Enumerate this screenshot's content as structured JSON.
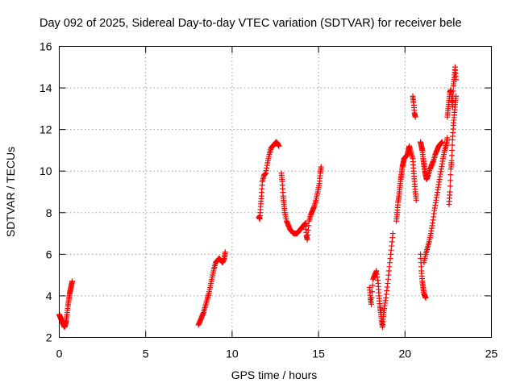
{
  "chart_data": {
    "type": "scatter",
    "title": "Day 092 of 2025, Sidereal Day-to-day VTEC variation (SDTVAR) for receiver bele",
    "xlabel": "GPS time / hours",
    "ylabel": "SDTVAR / TECUs",
    "xlim": [
      0,
      25
    ],
    "ylim": [
      2,
      16
    ],
    "xticks": [
      0,
      5,
      10,
      15,
      20,
      25
    ],
    "yticks": [
      2,
      4,
      6,
      8,
      10,
      12,
      14,
      16
    ],
    "grid": true,
    "marker": "+",
    "color": "#ff0000",
    "segments": [
      [
        [
          0.0,
          3.1
        ],
        [
          0.05,
          3.0
        ],
        [
          0.1,
          2.9
        ],
        [
          0.15,
          2.8
        ],
        [
          0.2,
          2.7
        ],
        [
          0.25,
          2.6
        ],
        [
          0.3,
          2.5
        ],
        [
          0.35,
          2.6
        ],
        [
          0.4,
          2.8
        ],
        [
          0.45,
          3.1
        ],
        [
          0.5,
          3.5
        ],
        [
          0.55,
          3.8
        ],
        [
          0.6,
          4.1
        ],
        [
          0.65,
          4.3
        ],
        [
          0.7,
          4.5
        ],
        [
          0.75,
          4.7
        ]
      ],
      [
        [
          8.05,
          2.6
        ],
        [
          8.15,
          2.8
        ],
        [
          8.25,
          3.0
        ],
        [
          8.35,
          3.2
        ],
        [
          8.45,
          3.5
        ],
        [
          8.55,
          3.8
        ],
        [
          8.65,
          4.1
        ],
        [
          8.75,
          4.5
        ],
        [
          8.85,
          4.9
        ],
        [
          8.95,
          5.3
        ],
        [
          9.05,
          5.6
        ],
        [
          9.15,
          5.7
        ],
        [
          9.25,
          5.8
        ],
        [
          9.35,
          5.7
        ],
        [
          9.45,
          5.6
        ],
        [
          9.55,
          5.8
        ],
        [
          9.6,
          6.1
        ]
      ],
      [
        [
          11.55,
          7.8
        ],
        [
          11.6,
          7.7
        ],
        [
          11.65,
          8.3
        ],
        [
          11.7,
          8.8
        ],
        [
          11.75,
          9.5
        ],
        [
          11.85,
          9.8
        ],
        [
          11.95,
          9.9
        ],
        [
          12.05,
          10.4
        ],
        [
          12.15,
          10.8
        ],
        [
          12.25,
          11.1
        ],
        [
          12.35,
          11.2
        ],
        [
          12.45,
          11.3
        ],
        [
          12.55,
          11.4
        ],
        [
          12.65,
          11.3
        ],
        [
          12.7,
          11.2
        ]
      ],
      [
        [
          12.85,
          9.9
        ],
        [
          12.9,
          9.5
        ],
        [
          12.95,
          8.8
        ],
        [
          13.0,
          8.4
        ],
        [
          13.05,
          8.0
        ],
        [
          13.15,
          7.6
        ],
        [
          13.25,
          7.4
        ],
        [
          13.35,
          7.2
        ],
        [
          13.45,
          7.1
        ],
        [
          13.55,
          7.0
        ],
        [
          13.65,
          7.0
        ],
        [
          13.75,
          7.0
        ],
        [
          13.85,
          7.1
        ],
        [
          13.95,
          7.2
        ],
        [
          14.05,
          7.3
        ],
        [
          14.15,
          7.4
        ],
        [
          14.25,
          7.5
        ],
        [
          14.3,
          6.9
        ],
        [
          14.35,
          6.7
        ],
        [
          14.45,
          7.6
        ],
        [
          14.55,
          7.9
        ],
        [
          14.65,
          8.1
        ],
        [
          14.75,
          8.3
        ],
        [
          14.85,
          8.6
        ],
        [
          14.95,
          9.0
        ],
        [
          15.05,
          9.4
        ],
        [
          15.1,
          9.9
        ],
        [
          15.15,
          10.2
        ]
      ],
      [
        [
          17.95,
          4.4
        ],
        [
          18.0,
          3.9
        ],
        [
          18.05,
          3.6
        ],
        [
          18.15,
          4.8
        ],
        [
          18.25,
          5.0
        ],
        [
          18.35,
          5.2
        ],
        [
          18.45,
          4.6
        ],
        [
          18.5,
          4.0
        ],
        [
          18.55,
          3.5
        ],
        [
          18.6,
          3.2
        ],
        [
          18.65,
          2.8
        ],
        [
          18.7,
          2.5
        ],
        [
          18.75,
          3.0
        ],
        [
          18.8,
          3.4
        ],
        [
          18.9,
          3.9
        ],
        [
          19.0,
          4.6
        ],
        [
          19.1,
          5.4
        ],
        [
          19.2,
          6.2
        ],
        [
          19.3,
          7.0
        ]
      ],
      [
        [
          19.5,
          7.6
        ],
        [
          19.55,
          8.0
        ],
        [
          19.6,
          8.5
        ],
        [
          19.65,
          8.8
        ],
        [
          19.7,
          9.2
        ],
        [
          19.75,
          9.6
        ],
        [
          19.8,
          9.9
        ],
        [
          19.85,
          10.2
        ],
        [
          19.9,
          10.4
        ],
        [
          19.95,
          10.6
        ],
        [
          20.05,
          10.7
        ],
        [
          20.15,
          10.8
        ],
        [
          20.2,
          11.0
        ],
        [
          20.25,
          11.2
        ],
        [
          20.35,
          10.9
        ],
        [
          20.45,
          10.6
        ],
        [
          20.5,
          10.0
        ],
        [
          20.55,
          9.5
        ],
        [
          20.6,
          9.0
        ],
        [
          20.65,
          8.6
        ]
      ],
      [
        [
          20.45,
          13.6
        ],
        [
          20.5,
          13.3
        ],
        [
          20.55,
          12.8
        ],
        [
          20.6,
          12.6
        ]
      ],
      [
        [
          20.9,
          6.0
        ],
        [
          20.95,
          5.2
        ],
        [
          21.0,
          4.7
        ],
        [
          21.05,
          4.4
        ],
        [
          21.1,
          4.1
        ],
        [
          21.15,
          4.0
        ],
        [
          21.2,
          3.9
        ]
      ],
      [
        [
          20.9,
          11.4
        ],
        [
          20.95,
          11.2
        ],
        [
          21.0,
          11.0
        ],
        [
          21.05,
          10.6
        ],
        [
          21.1,
          10.3
        ],
        [
          21.15,
          10.0
        ],
        [
          21.2,
          9.8
        ],
        [
          21.25,
          9.6
        ],
        [
          21.35,
          9.8
        ],
        [
          21.45,
          10.1
        ],
        [
          21.55,
          10.3
        ],
        [
          21.65,
          10.5
        ],
        [
          21.75,
          10.8
        ],
        [
          21.85,
          11.0
        ],
        [
          21.95,
          11.2
        ],
        [
          22.05,
          11.3
        ],
        [
          22.15,
          11.4
        ]
      ],
      [
        [
          21.1,
          5.6
        ],
        [
          21.2,
          6.0
        ],
        [
          21.3,
          6.3
        ],
        [
          21.4,
          6.6
        ],
        [
          21.5,
          7.0
        ],
        [
          21.6,
          7.5
        ],
        [
          21.7,
          8.1
        ],
        [
          21.8,
          8.6
        ],
        [
          21.9,
          9.1
        ],
        [
          22.0,
          9.6
        ],
        [
          22.1,
          10.1
        ],
        [
          22.2,
          10.6
        ],
        [
          22.3,
          11.0
        ],
        [
          22.4,
          11.3
        ],
        [
          22.45,
          11.6
        ]
      ],
      [
        [
          22.55,
          8.4
        ],
        [
          22.6,
          9.0
        ],
        [
          22.65,
          10.1
        ],
        [
          22.7,
          10.5
        ],
        [
          22.75,
          11.5
        ],
        [
          22.8,
          12.2
        ],
        [
          22.85,
          12.7
        ],
        [
          22.9,
          13.2
        ],
        [
          22.95,
          13.6
        ]
      ],
      [
        [
          22.45,
          12.6
        ],
        [
          22.5,
          13.0
        ],
        [
          22.55,
          13.4
        ],
        [
          22.6,
          13.8
        ],
        [
          22.65,
          13.9
        ],
        [
          22.7,
          13.5
        ],
        [
          22.75,
          13.1
        ],
        [
          22.8,
          14.1
        ],
        [
          22.85,
          14.5
        ],
        [
          22.9,
          15.0
        ],
        [
          22.95,
          14.4
        ]
      ]
    ]
  }
}
